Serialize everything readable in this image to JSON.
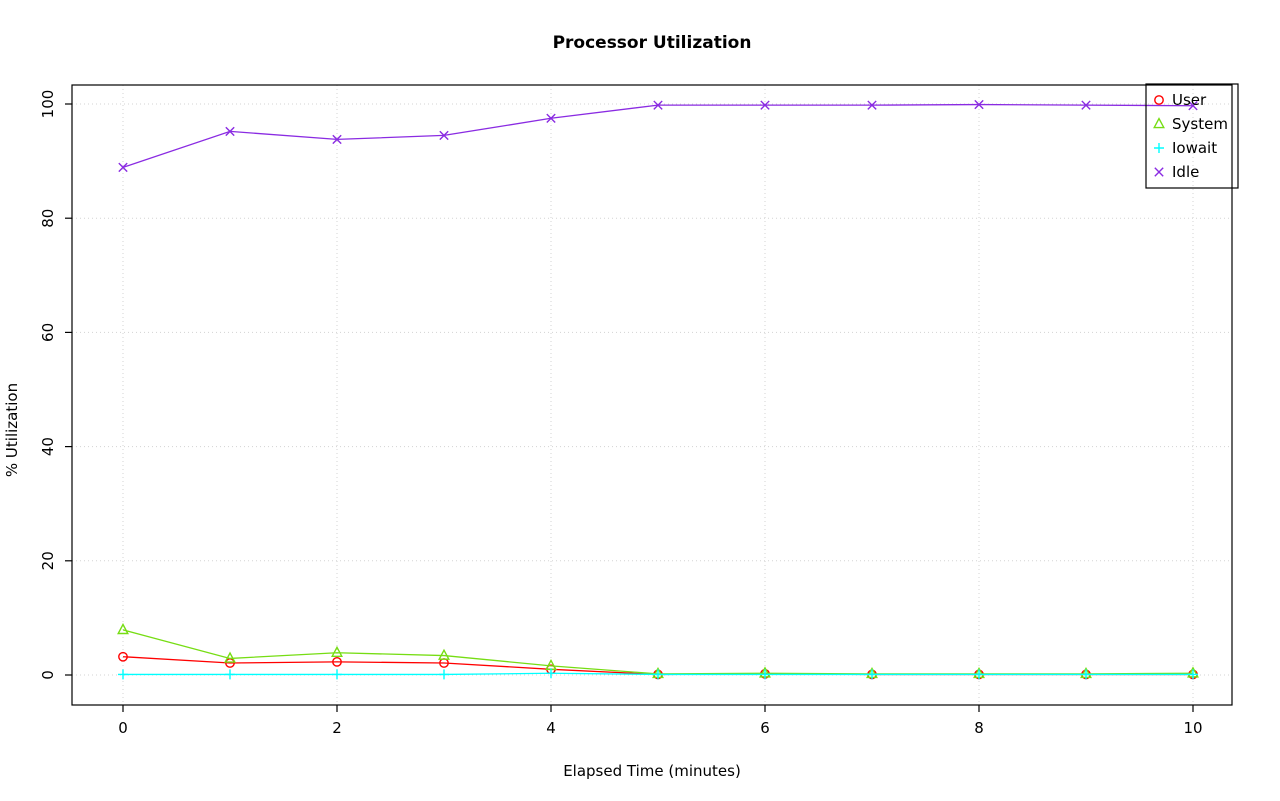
{
  "chart_data": {
    "type": "line",
    "title": "Processor Utilization",
    "xlabel": "Elapsed Time (minutes)",
    "ylabel": "% Utilization",
    "x": [
      0,
      1,
      2,
      3,
      4,
      5,
      6,
      7,
      8,
      9,
      10
    ],
    "xlim": [
      0,
      10
    ],
    "ylim": [
      0,
      100
    ],
    "x_ticks": [
      0,
      2,
      4,
      6,
      8,
      10
    ],
    "y_ticks": [
      0,
      20,
      40,
      60,
      80,
      100
    ],
    "grid": true,
    "grid_color": "#d3d3d3",
    "legend_position": "top-right",
    "series": [
      {
        "name": "User",
        "color": "#ff0000",
        "marker": "circle",
        "values": [
          3.2,
          2.1,
          2.3,
          2.1,
          1.0,
          0.1,
          0.2,
          0.1,
          0.1,
          0.1,
          0.1
        ]
      },
      {
        "name": "System",
        "color": "#76dd13",
        "marker": "triangle",
        "values": [
          7.9,
          2.9,
          3.9,
          3.4,
          1.6,
          0.2,
          0.3,
          0.2,
          0.2,
          0.2,
          0.3
        ]
      },
      {
        "name": "Iowait",
        "color": "#00ffff",
        "marker": "plus",
        "values": [
          0.1,
          0.1,
          0.1,
          0.1,
          0.3,
          0.1,
          0.1,
          0.1,
          0.1,
          0.1,
          0.1
        ]
      },
      {
        "name": "Idle",
        "color": "#8a2be2",
        "marker": "x",
        "values": [
          88.9,
          95.2,
          93.8,
          94.5,
          97.5,
          99.8,
          99.8,
          99.8,
          99.9,
          99.8,
          99.7
        ]
      }
    ]
  }
}
